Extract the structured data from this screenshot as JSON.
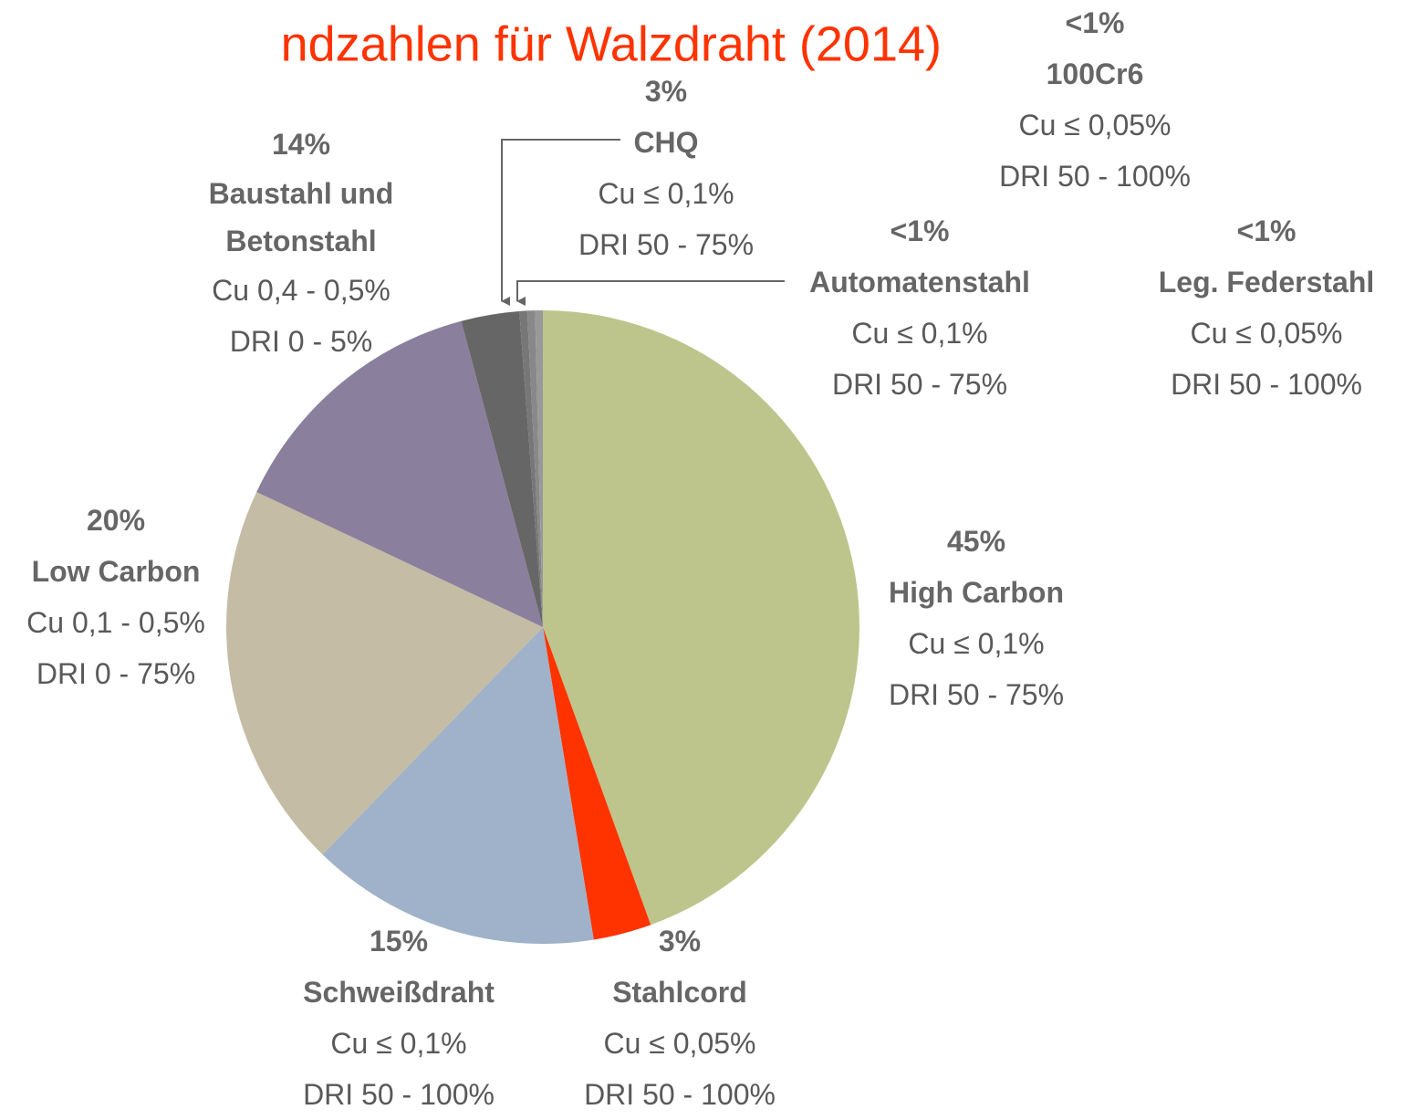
{
  "chart_data": {
    "type": "pie",
    "title": "ndzahlen für Walzdraht (2014)",
    "categories": [
      "High Carbon",
      "Stahlcord",
      "Schweißdraht",
      "Low Carbon",
      "Baustahl und Betonstahl",
      "CHQ",
      "Automatenstahl",
      "100Cr6",
      "Leg. Federstahl"
    ],
    "values": [
      45,
      3,
      15,
      20,
      14,
      3,
      0.4,
      0.4,
      0.4
    ],
    "value_labels": [
      "45%",
      "3%",
      "15%",
      "20%",
      "14%",
      "3%",
      "<1%",
      "<1%",
      "<1%"
    ],
    "cu": [
      "Cu ≤ 0,1%",
      "Cu ≤ 0,05%",
      "Cu ≤ 0,1%",
      "Cu 0,1 - 0,5%",
      "Cu 0,4 - 0,5%",
      "Cu ≤ 0,1%",
      "Cu ≤ 0,1%",
      "Cu ≤ 0,05%",
      "Cu ≤ 0,05%"
    ],
    "dri": [
      "DRI 50 - 75%",
      "DRI 50 - 100%",
      "DRI 50 - 100%",
      "DRI 0 - 75%",
      "DRI 0 - 5%",
      "DRI 50 - 75%",
      "DRI 50 - 75%",
      "DRI 50 - 100%",
      "DRI 50 - 100%"
    ],
    "colors": [
      "#bdc58c",
      "#ff3300",
      "#9fb2c9",
      "#c4bca4",
      "#8a7f9d",
      "#666666",
      "#777777",
      "#888888",
      "#999999"
    ]
  }
}
